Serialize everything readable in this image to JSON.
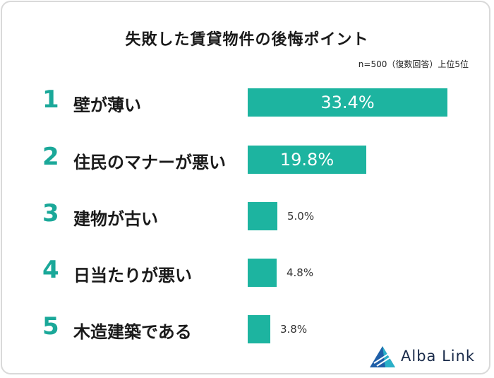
{
  "title": "失敗した賃貸物件の後悔ポイント",
  "note": "n=500（復数回答）上位5位",
  "colors": {
    "bar": "#1db4a0",
    "rank": "#1aa899",
    "border": "#d9d9d9"
  },
  "logo": {
    "text": "Alba Link",
    "icon": "alba-link-logo-icon"
  },
  "chart_data": {
    "type": "bar",
    "orientation": "horizontal",
    "ranks": [
      "1",
      "2",
      "3",
      "4",
      "5"
    ],
    "categories": [
      "壁が薄い",
      "住民のマナーが悪い",
      "建物が古い",
      "日当たりが悪い",
      "木造建築である"
    ],
    "values": [
      33.4,
      19.8,
      5.0,
      4.8,
      3.8
    ],
    "value_labels": [
      "33.4%",
      "19.8%",
      "5.0%",
      "4.8%",
      "3.8%"
    ],
    "unit": "%",
    "xlim": [
      0,
      33.4
    ],
    "grid": false,
    "legend": "none"
  }
}
